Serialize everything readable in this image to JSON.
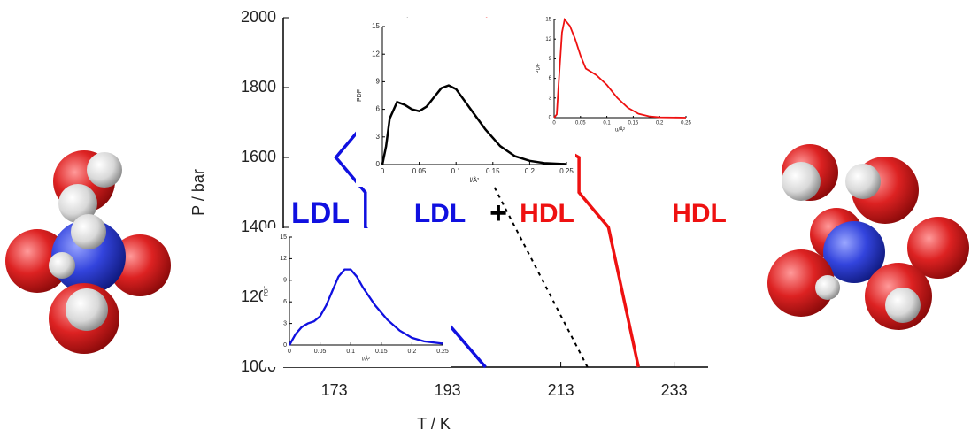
{
  "chart_data": [
    {
      "type": "line",
      "xlabel": "T / K",
      "ylabel": "P / bar",
      "xlim": [
        164,
        239
      ],
      "ylim": [
        1000,
        2000
      ],
      "xticks": [
        173,
        193,
        213,
        233
      ],
      "yticks": [
        1000,
        1200,
        1400,
        1600,
        1800,
        2000
      ],
      "series": [
        {
          "color": "#1010e0",
          "x": [
            178.5,
            178.5,
            173.3,
            178.5,
            178.5,
            199.7
          ],
          "values": [
            2000,
            1700,
            1600,
            1500,
            1400,
            1000
          ]
        },
        {
          "color": "#ee1111",
          "x": [
            199.7,
            205.3,
            205.3,
            216.2,
            216.2,
            221.4,
            226.7
          ],
          "values": [
            2000,
            1752,
            1700,
            1600,
            1500,
            1400,
            1000
          ]
        },
        {
          "color": "#000000",
          "dash": true,
          "x": [
            185.8,
            217.7
          ],
          "values": [
            2000,
            1000
          ]
        }
      ],
      "annotations": [
        {
          "text": "LDL",
          "color": "#1010e0"
        },
        {
          "text": "LDL",
          "color": "#1010e0"
        },
        {
          "text": "+",
          "color": "#000000"
        },
        {
          "text": "HDL",
          "color": "#ee1111"
        },
        {
          "text": "HDL",
          "color": "#ee1111"
        }
      ]
    },
    {
      "type": "line",
      "xlabel": "l/Å²",
      "ylabel": "PDF",
      "xlim": [
        0,
        0.25
      ],
      "ylim": [
        0,
        15
      ],
      "xticks": [
        0,
        0.05,
        0.1,
        0.15,
        0.2,
        0.25
      ],
      "yticks": [
        0,
        3,
        6,
        9,
        12,
        15
      ],
      "series": [
        {
          "color": "#000000",
          "x": [
            0,
            0.005,
            0.01,
            0.02,
            0.03,
            0.04,
            0.05,
            0.06,
            0.07,
            0.08,
            0.09,
            0.1,
            0.12,
            0.14,
            0.16,
            0.18,
            0.2,
            0.22,
            0.25
          ],
          "values": [
            0,
            2,
            5,
            6.8,
            6.5,
            6,
            5.8,
            6.3,
            7.3,
            8.3,
            8.6,
            8.2,
            6,
            3.8,
            2,
            0.9,
            0.4,
            0.15,
            0.05
          ]
        }
      ]
    },
    {
      "type": "line",
      "xlabel": "u/Å²",
      "ylabel": "PDF",
      "xlim": [
        0,
        0.25
      ],
      "ylim": [
        0,
        15
      ],
      "xticks": [
        0,
        0.05,
        0.1,
        0.15,
        0.2,
        0.25
      ],
      "yticks": [
        0,
        3,
        6,
        9,
        12,
        15
      ],
      "series": [
        {
          "color": "#ee1111",
          "x": [
            0,
            0.005,
            0.01,
            0.015,
            0.02,
            0.03,
            0.04,
            0.05,
            0.06,
            0.08,
            0.1,
            0.12,
            0.14,
            0.16,
            0.18,
            0.2,
            0.25
          ],
          "values": [
            0,
            0.5,
            7,
            13,
            15,
            14,
            12,
            9.5,
            7.5,
            6.5,
            5,
            3,
            1.5,
            0.6,
            0.2,
            0.05,
            0
          ]
        }
      ]
    },
    {
      "type": "line",
      "xlabel": "l/Å²",
      "ylabel": "PDF",
      "xlim": [
        0,
        0.25
      ],
      "ylim": [
        0,
        15
      ],
      "xticks": [
        0,
        0.05,
        0.1,
        0.15,
        0.2,
        0.25
      ],
      "yticks": [
        0,
        3,
        6,
        9,
        12,
        15
      ],
      "series": [
        {
          "color": "#1010e0",
          "x": [
            0,
            0.01,
            0.02,
            0.03,
            0.04,
            0.05,
            0.06,
            0.07,
            0.08,
            0.09,
            0.1,
            0.11,
            0.12,
            0.14,
            0.16,
            0.18,
            0.2,
            0.22,
            0.25
          ],
          "values": [
            0,
            1.5,
            2.5,
            3,
            3.3,
            4,
            5.5,
            7.5,
            9.5,
            10.5,
            10.5,
            9.5,
            8,
            5.5,
            3.5,
            2,
            1,
            0.5,
            0.2
          ]
        }
      ]
    }
  ]
}
